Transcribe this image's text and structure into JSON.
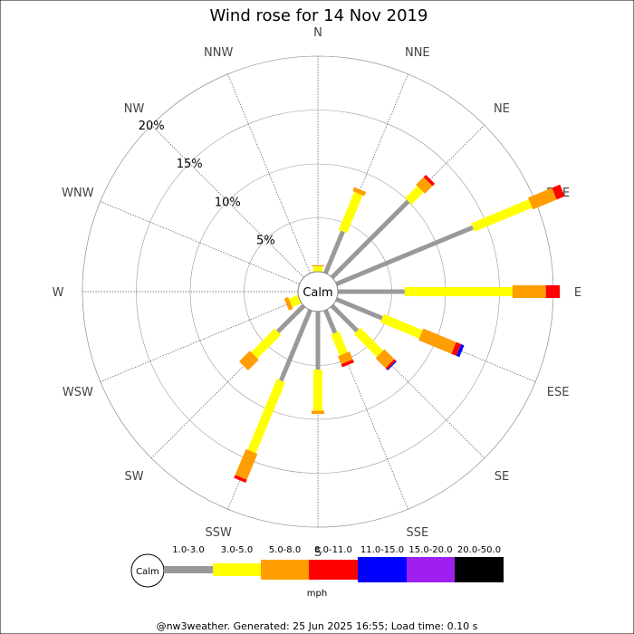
{
  "chart_data": {
    "type": "wind-rose",
    "title": "Wind rose for 14 Nov 2019",
    "directions": [
      "N",
      "NNE",
      "NE",
      "ENE",
      "E",
      "ESE",
      "SE",
      "SSE",
      "S",
      "SSW",
      "SW",
      "WSW",
      "W",
      "WNW",
      "NW",
      "NNW"
    ],
    "rings_percent": [
      5,
      10,
      15,
      20
    ],
    "ring_labels": [
      "5%",
      "10%",
      "15%",
      "20%"
    ],
    "calm_label": "Calm",
    "speed_bins": [
      "Calm",
      "1.0-3.0",
      "3.0-5.0",
      "5.0-8.0",
      "8.0-11.0",
      "11.0-15.0",
      "15.0-20.0",
      "20.0-50.0"
    ],
    "bin_colors": [
      "#ffffff",
      "#999999",
      "#ffff00",
      "#ff9e00",
      "#ff0000",
      "#0000ff",
      "#9f1fef",
      "#000000"
    ],
    "unit": "mph",
    "cumulative_percent": [
      {
        "dir": "N",
        "edges": [
          0.0,
          0.5,
          0.6
        ]
      },
      {
        "dir": "NNE",
        "edges": [
          4.2,
          8.0,
          8.4
        ]
      },
      {
        "dir": "NE",
        "edges": [
          10.0,
          11.6,
          12.6,
          12.9
        ]
      },
      {
        "dir": "ENE",
        "edges": [
          13.7,
          19.5,
          21.9,
          22.7
        ]
      },
      {
        "dir": "E",
        "edges": [
          6.2,
          16.2,
          19.3,
          20.6
        ]
      },
      {
        "dir": "ESE",
        "edges": [
          4.6,
          8.5,
          11.8,
          12.3,
          12.6
        ]
      },
      {
        "dir": "SE",
        "edges": [
          3.3,
          6.3,
          7.6,
          7.8,
          7.9
        ]
      },
      {
        "dir": "SSE",
        "edges": [
          2.3,
          4.4,
          5.2,
          5.5
        ]
      },
      {
        "dir": "S",
        "edges": [
          5.4,
          9.2,
          9.5
        ]
      },
      {
        "dir": "SSW",
        "edges": [
          7.1,
          14.2,
          16.8,
          17.1
        ]
      },
      {
        "dir": "SW",
        "edges": [
          3.4,
          6.5,
          7.9
        ]
      },
      {
        "dir": "WSW",
        "edges": [
          0.0,
          0.9,
          1.3
        ]
      },
      {
        "dir": "W",
        "edges": []
      },
      {
        "dir": "WNW",
        "edges": []
      },
      {
        "dir": "NW",
        "edges": []
      },
      {
        "dir": "NNW",
        "edges": []
      }
    ]
  },
  "footer": "@nw3weather. Generated: 25 Jun 2025 16:55; Load time: 0.10 s"
}
